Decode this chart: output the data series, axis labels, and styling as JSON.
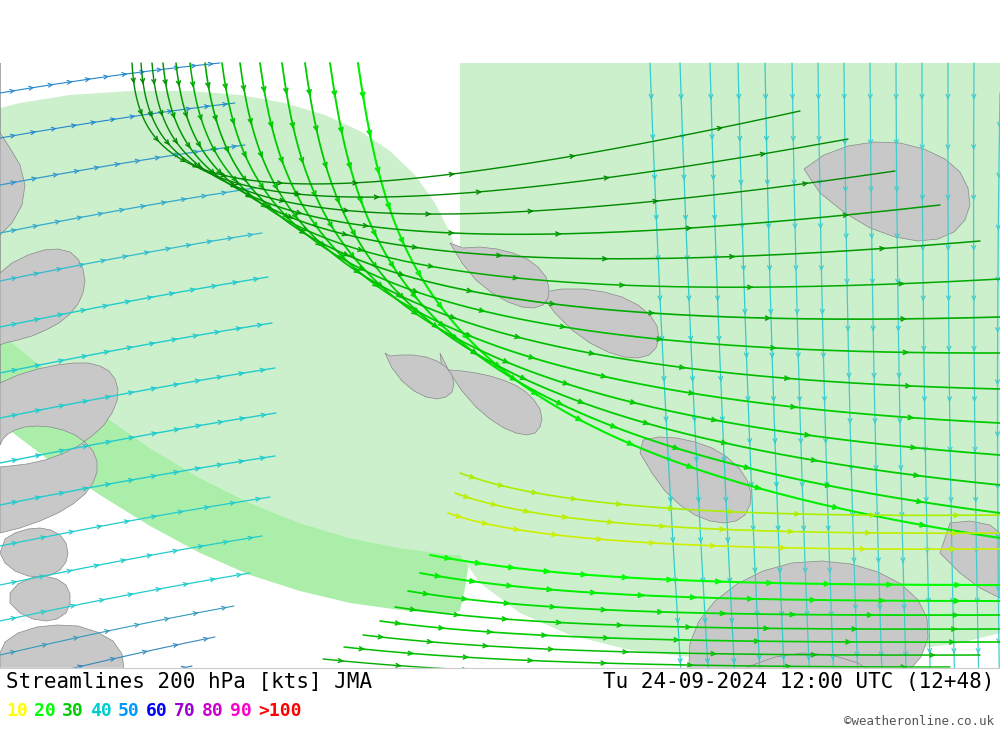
{
  "title_left": "Streamlines 200 hPa [kts] JMA",
  "title_right": "Tu 24-09-2024 12:00 UTC (12+48)",
  "credit": "©weatheronline.co.uk",
  "legend_values": [
    "10",
    "20",
    "30",
    "40",
    "50",
    "60",
    "70",
    "80",
    "90",
    ">100"
  ],
  "legend_colors": [
    "#ffff00",
    "#00ff00",
    "#00cc00",
    "#00cccc",
    "#0099ff",
    "#0000ff",
    "#9900cc",
    "#cc00cc",
    "#ff00cc",
    "#ff0000"
  ],
  "background_color": "#ffffff",
  "ocean_color": "#e0e0e0",
  "green_shade_light": "#ccf0cc",
  "green_shade_medium": "#aaeeaa",
  "land_gray": "#c8c8c8",
  "land_border": "#888888",
  "blue_stream": "#22aaee",
  "cyan_stream": "#00cccc",
  "green_stream": "#00cc00",
  "yellow_green_stream": "#aaee00",
  "title_fontsize": 15,
  "credit_fontsize": 9,
  "legend_fontsize": 13
}
